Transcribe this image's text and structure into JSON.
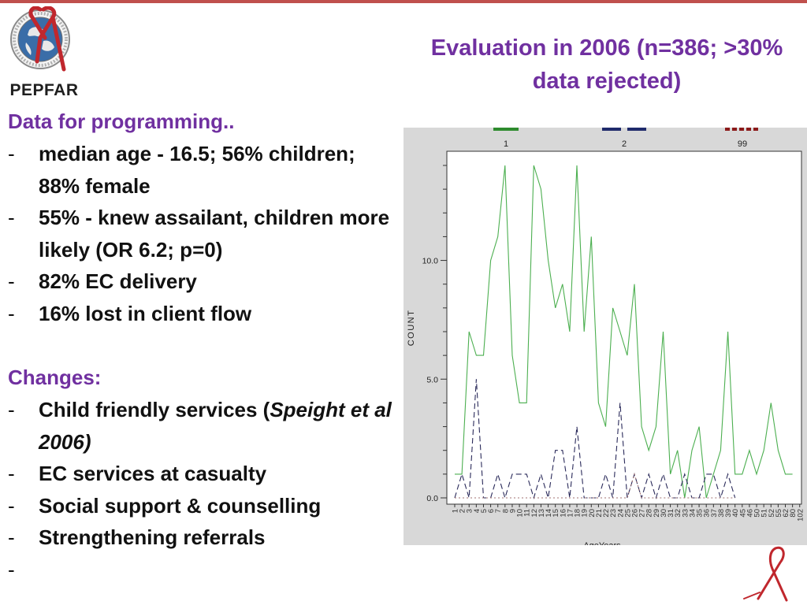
{
  "logo": {
    "text": "PEPFAR",
    "icon": "pepfar-seal-icon"
  },
  "title": {
    "line1": "Evaluation in 2006 (n=386; >30%",
    "line2": "data rejected)"
  },
  "programming": {
    "heading": "Data for programming..",
    "items": [
      {
        "dash": "-",
        "text": "median age - 16.5; 56% children;  88% female"
      },
      {
        "dash": "-",
        "text": "55% - knew assailant, children more likely (OR 6.2; p=0)"
      },
      {
        "dash": "-",
        "text": "82% EC delivery"
      },
      {
        "dash": "-",
        "text": "16% lost in client flow"
      }
    ]
  },
  "changes": {
    "heading": "Changes:",
    "items": [
      {
        "dash": "-",
        "text": "Child friendly services (",
        "italic": "Speight et al 2006)"
      },
      {
        "dash": "-",
        "text": "EC services at casualty"
      },
      {
        "dash": "-",
        "text": "Social support & counselling"
      },
      {
        "dash": "-",
        "text": "Strengthening referrals"
      },
      {
        "dash": "-",
        "text": ""
      }
    ]
  },
  "chart_data": {
    "type": "line",
    "xlabel": "AgeYears",
    "ylabel": "COUNT",
    "ylim": [
      0,
      14
    ],
    "yticks": [
      0,
      5,
      10
    ],
    "ytick_labels": [
      "0.0",
      "5.0",
      "10.0"
    ],
    "grid": false,
    "legend_position": "top",
    "legend": [
      {
        "label": "1",
        "color": "#2e8b2e"
      },
      {
        "label": "2",
        "color": "#1f2a6b"
      },
      {
        "label": "99",
        "color": "#8b1a1a"
      }
    ],
    "categories": [
      "1",
      "2",
      "3",
      "4",
      "5",
      "6",
      "7",
      "8",
      "9",
      "10",
      "11",
      "12",
      "13",
      "14",
      "15",
      "16",
      "17",
      "18",
      "19",
      "20",
      "21",
      "22",
      "23",
      "24",
      "25",
      "26",
      "27",
      "28",
      "29",
      "30",
      "31",
      "32",
      "33",
      "34",
      "35",
      "36",
      "37",
      "38",
      "39",
      "40",
      "45",
      "46",
      "50",
      "51",
      "52",
      "55",
      "62",
      "80",
      "102"
    ],
    "series": [
      {
        "name": "1",
        "color": "#4caf50",
        "dash": "",
        "values": [
          1,
          1,
          7,
          6,
          6,
          10,
          11,
          14,
          6,
          4,
          4,
          14,
          13,
          10,
          8,
          9,
          7,
          14,
          7,
          11,
          4,
          3,
          8,
          7,
          6,
          9,
          3,
          2,
          3,
          7,
          1,
          2,
          0,
          2,
          3,
          0,
          1,
          2,
          7,
          1,
          1,
          2,
          1,
          2,
          4,
          2,
          1,
          1,
          null
        ]
      },
      {
        "name": "2",
        "color": "#2a2a5a",
        "dash": "7,4",
        "values": [
          0,
          1,
          0,
          5,
          0,
          0,
          1,
          0,
          1,
          1,
          1,
          0,
          1,
          0,
          2,
          2,
          0,
          3,
          0,
          0,
          0,
          1,
          0,
          4,
          0,
          1,
          0,
          1,
          0,
          1,
          0,
          0,
          1,
          0,
          0,
          1,
          1,
          0,
          1,
          0,
          null,
          null,
          null,
          null,
          null,
          null,
          null,
          null,
          null
        ]
      },
      {
        "name": "99",
        "color": "#a07070",
        "dash": "2,3",
        "values": [
          0,
          0,
          0,
          0,
          0,
          0,
          0,
          0,
          0,
          0,
          0,
          0,
          0,
          0,
          0,
          0,
          0,
          0,
          0,
          0,
          0,
          0,
          0,
          0,
          0,
          1,
          0,
          0,
          0,
          0,
          0,
          0,
          0,
          0,
          0,
          0,
          0,
          0,
          0,
          0,
          null,
          null,
          null,
          null,
          null,
          null,
          null,
          null,
          null
        ]
      }
    ]
  }
}
